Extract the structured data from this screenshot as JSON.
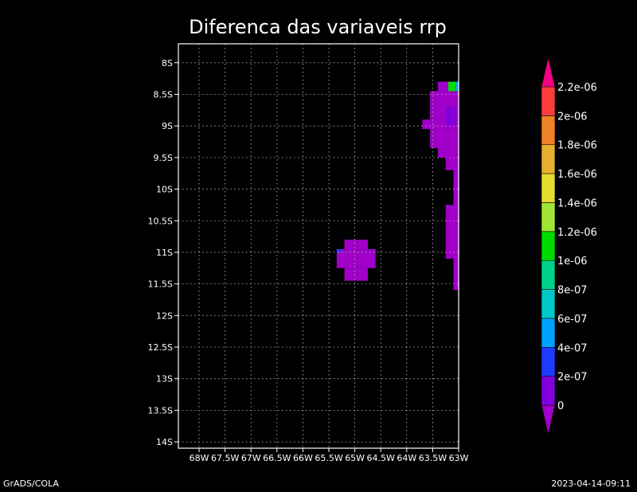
{
  "title": "Diferenca das variaveis rrp",
  "footer_left": "GrADS/COLA",
  "footer_right": "2023-04-14-09:11",
  "chart_data": {
    "type": "heatmap",
    "title": "Diferenca das variaveis rrp",
    "xlim": [
      -68.4,
      -63.0
    ],
    "ylim": [
      -14.1,
      -7.7
    ],
    "x_ticks": [
      {
        "value": -68,
        "label": "68W"
      },
      {
        "value": -67.5,
        "label": "67.5W"
      },
      {
        "value": -67,
        "label": "67W"
      },
      {
        "value": -66.5,
        "label": "66.5W"
      },
      {
        "value": -66,
        "label": "66W"
      },
      {
        "value": -65.5,
        "label": "65.5W"
      },
      {
        "value": -65,
        "label": "65W"
      },
      {
        "value": -64.5,
        "label": "64.5W"
      },
      {
        "value": -64,
        "label": "64W"
      },
      {
        "value": -63.5,
        "label": "63.5W"
      },
      {
        "value": -63,
        "label": "63W"
      }
    ],
    "y_ticks": [
      {
        "value": -8,
        "label": "8S"
      },
      {
        "value": -8.5,
        "label": "8.5S"
      },
      {
        "value": -9,
        "label": "9S"
      },
      {
        "value": -9.5,
        "label": "9.5S"
      },
      {
        "value": -10,
        "label": "10S"
      },
      {
        "value": -10.5,
        "label": "10.5S"
      },
      {
        "value": -11,
        "label": "11S"
      },
      {
        "value": -11.5,
        "label": "11.5S"
      },
      {
        "value": -12,
        "label": "12S"
      },
      {
        "value": -12.5,
        "label": "12.5S"
      },
      {
        "value": -13,
        "label": "13S"
      },
      {
        "value": -13.5,
        "label": "13.5S"
      },
      {
        "value": -14,
        "label": "14S"
      }
    ],
    "grid": true,
    "colorbar": {
      "labels": [
        "0",
        "2e-07",
        "4e-07",
        "6e-07",
        "8e-07",
        "1e-06",
        "1.2e-06",
        "1.4e-06",
        "1.6e-06",
        "1.8e-06",
        "2e-06",
        "2.2e-06"
      ],
      "colors": [
        "#a000c8",
        "#8200dc",
        "#1e3cff",
        "#00a0ff",
        "#00c8c8",
        "#00d28c",
        "#00dc00",
        "#a0e632",
        "#e6dc32",
        "#e6af2d",
        "#f08228",
        "#fa3c3c",
        "#f00082"
      ]
    },
    "regions": [
      {
        "x0": -63.4,
        "x1": -63.15,
        "y0": -8.45,
        "y1": -8.3,
        "level": 0
      },
      {
        "x0": -63.55,
        "x1": -63.0,
        "y0": -8.6,
        "y1": -8.45,
        "level": 0
      },
      {
        "x0": -63.55,
        "x1": -63.0,
        "y0": -8.9,
        "y1": -8.6,
        "level": 0
      },
      {
        "x0": -63.7,
        "x1": -63.0,
        "y0": -9.05,
        "y1": -8.9,
        "level": 0
      },
      {
        "x0": -63.55,
        "x1": -63.0,
        "y0": -9.35,
        "y1": -9.05,
        "level": 0
      },
      {
        "x0": -63.4,
        "x1": -63.0,
        "y0": -9.5,
        "y1": -9.35,
        "level": 0
      },
      {
        "x0": -63.25,
        "x1": -63.0,
        "y0": -9.7,
        "y1": -9.5,
        "level": 0
      },
      {
        "x0": -63.1,
        "x1": -63.0,
        "y0": -10.25,
        "y1": -9.7,
        "level": 0
      },
      {
        "x0": -63.25,
        "x1": -63.0,
        "y0": -11.1,
        "y1": -10.25,
        "level": 0
      },
      {
        "x0": -63.1,
        "x1": -63.0,
        "y0": -11.6,
        "y1": -11.1,
        "level": 0
      },
      {
        "x0": -65.2,
        "x1": -64.75,
        "y0": -10.95,
        "y1": -10.8,
        "level": 0
      },
      {
        "x0": -65.35,
        "x1": -64.6,
        "y0": -11.25,
        "y1": -10.95,
        "level": 0
      },
      {
        "x0": -65.2,
        "x1": -64.75,
        "y0": -11.45,
        "y1": -11.25,
        "level": 0
      },
      {
        "x0": -63.2,
        "x1": -63.05,
        "y0": -8.45,
        "y1": -8.3,
        "level": 6
      },
      {
        "x0": -63.05,
        "x1": -63.0,
        "y0": -8.45,
        "y1": -8.3,
        "level": 3
      },
      {
        "x0": -63.25,
        "x1": -63.05,
        "y0": -9.0,
        "y1": -8.7,
        "level": 1
      },
      {
        "x0": -65.35,
        "x1": -65.25,
        "y0": -11.0,
        "y1": -10.95,
        "level": 2
      }
    ]
  }
}
